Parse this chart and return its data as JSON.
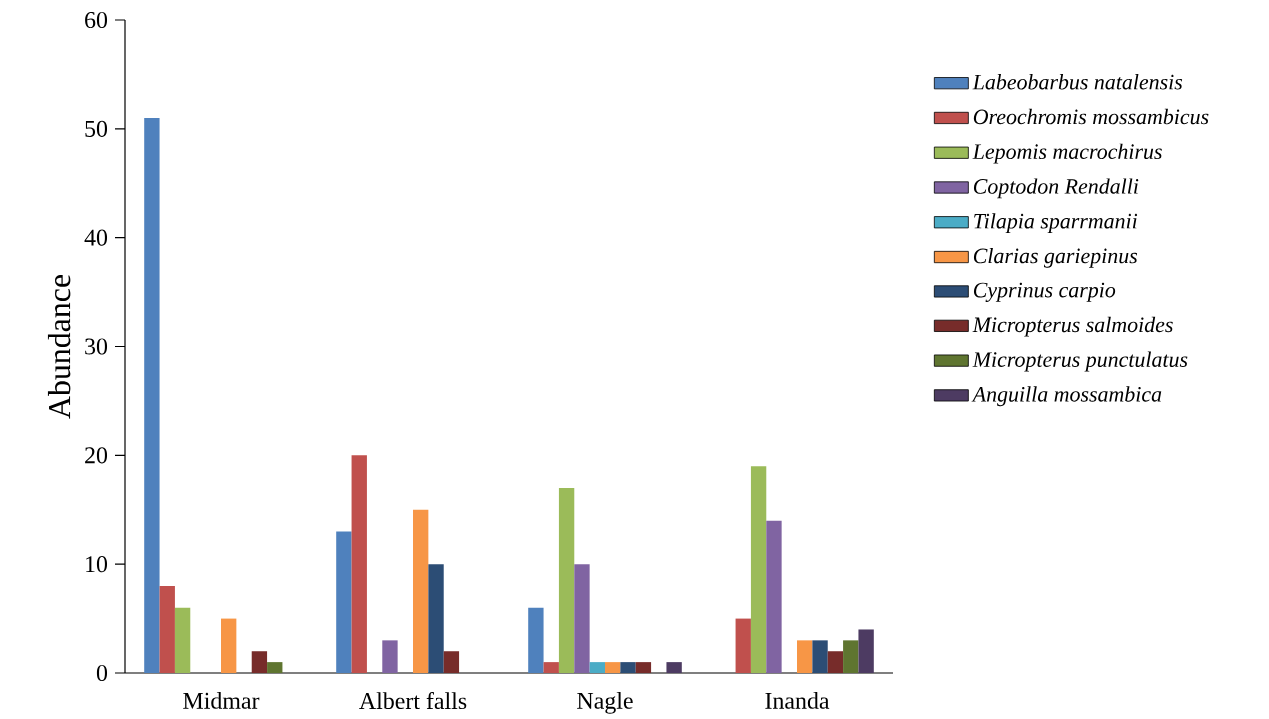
{
  "chart_data": {
    "type": "bar",
    "ylabel": "Abundance",
    "categories": [
      "Midmar",
      "Albert falls",
      "Nagle",
      "Inanda"
    ],
    "series": [
      {
        "name": "Labeobarbus natalensis",
        "color": "#4f81bd",
        "values": [
          51,
          13,
          6,
          0
        ]
      },
      {
        "name": "Oreochromis mossambicus",
        "color": "#c0504d",
        "values": [
          8,
          20,
          1,
          5
        ]
      },
      {
        "name": "Lepomis macrochirus",
        "color": "#9bbb59",
        "values": [
          6,
          0,
          17,
          19
        ]
      },
      {
        "name": "Coptodon Rendalli",
        "color": "#8064a2",
        "values": [
          0,
          3,
          10,
          14
        ]
      },
      {
        "name": "Tilapia sparrmanii",
        "color": "#4bacc6",
        "values": [
          0,
          0,
          1,
          0
        ]
      },
      {
        "name": "Clarias gariepinus",
        "color": "#f79646",
        "values": [
          5,
          15,
          1,
          3
        ]
      },
      {
        "name": "Cyprinus carpio",
        "color": "#2c4d75",
        "values": [
          0,
          10,
          1,
          3
        ]
      },
      {
        "name": "Micropterus salmoides",
        "color": "#772c2a",
        "values": [
          2,
          2,
          1,
          2
        ]
      },
      {
        "name": "Micropterus punctulatus",
        "color": "#5f7530",
        "values": [
          1,
          0,
          0,
          3
        ]
      },
      {
        "name": "Anguilla mossambica",
        "color": "#4d3b62",
        "values": [
          0,
          0,
          1,
          4
        ]
      }
    ],
    "ylim": [
      0,
      60
    ],
    "yticks": [
      0,
      10,
      20,
      30,
      40,
      50,
      60
    ],
    "grid": false,
    "legend": "right"
  }
}
